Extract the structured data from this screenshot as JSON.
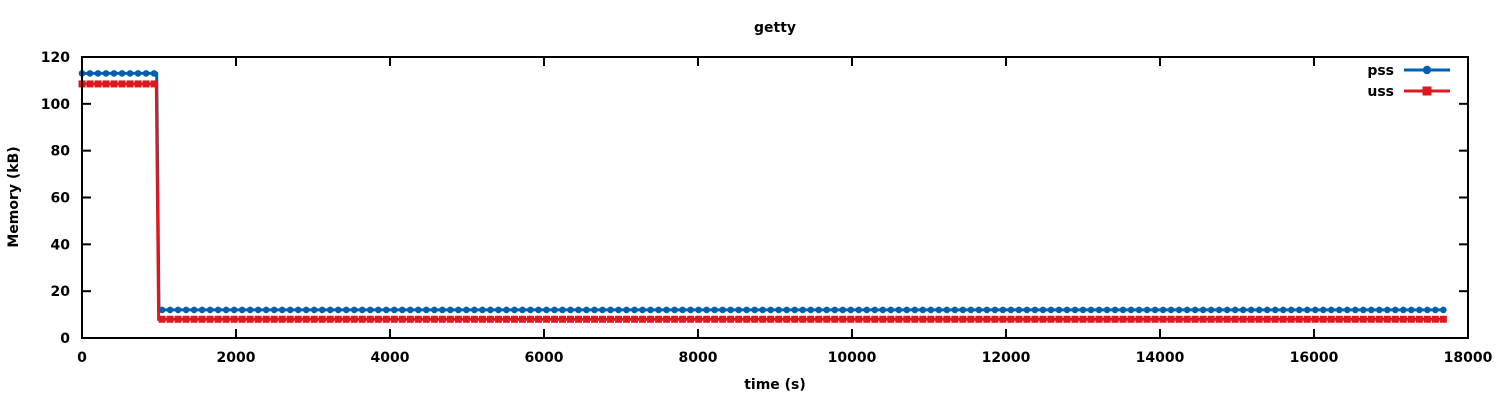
{
  "page": {
    "background": "#ffffff",
    "axis_color": "#000000"
  },
  "chart_data": {
    "type": "line",
    "title": "getty",
    "xlabel": "time (s)",
    "ylabel": "Memory (kB)",
    "xlim": [
      0,
      18000
    ],
    "ylim": [
      0,
      120
    ],
    "xticks": [
      0,
      2000,
      4000,
      6000,
      8000,
      10000,
      12000,
      14000,
      16000,
      18000
    ],
    "yticks": [
      0,
      20,
      40,
      60,
      80,
      100,
      120
    ],
    "grid": false,
    "ticks_mirrored": true,
    "legend_position": "inside-top-right",
    "marker_interval_s": 104,
    "series": [
      {
        "name": "pss",
        "color": "#0060ad",
        "marker": "circle",
        "line_width": 3,
        "points": [
          [
            0,
            113
          ],
          [
            970,
            113
          ],
          [
            1000,
            12
          ],
          [
            17700,
            12
          ]
        ]
      },
      {
        "name": "uss",
        "color": "#dd181f",
        "marker": "square",
        "line_width": 3,
        "points": [
          [
            0,
            108.5
          ],
          [
            965,
            108.5
          ],
          [
            995,
            8
          ],
          [
            17700,
            8
          ]
        ]
      }
    ]
  }
}
